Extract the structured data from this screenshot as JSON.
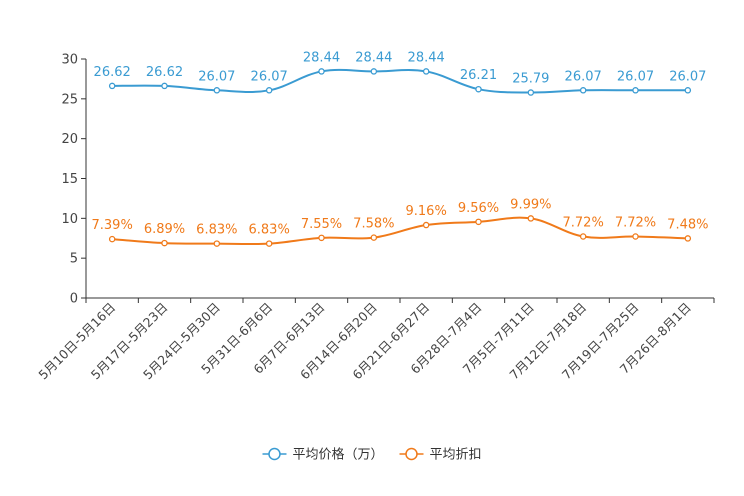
{
  "chart_data": {
    "type": "line",
    "title": "",
    "xlabel": "",
    "ylabel": "",
    "ylim": [
      0,
      30
    ],
    "yticks": [
      0,
      5,
      10,
      15,
      20,
      25,
      30
    ],
    "categories": [
      "5月10日-5月16日",
      "5月17日-5月23日",
      "5月24日-5月30日",
      "5月31日-6月6日",
      "6月7日-6月13日",
      "6月14日-6月20日",
      "6月21日-6月27日",
      "6月28日-7月4日",
      "7月5日-7月11日",
      "7月12日-7月18日",
      "7月19日-7月25日",
      "7月26日-8月1日"
    ],
    "series": [
      {
        "name": "平均价格（万）",
        "color": "#3a9bd2",
        "values": [
          26.62,
          26.62,
          26.07,
          26.07,
          28.44,
          28.44,
          28.44,
          26.21,
          25.79,
          26.07,
          26.07,
          26.07
        ],
        "labels": [
          "26.62",
          "26.62",
          "26.07",
          "26.07",
          "28.44",
          "28.44",
          "28.44",
          "26.21",
          "25.79",
          "26.07",
          "26.07",
          "26.07"
        ]
      },
      {
        "name": "平均折扣",
        "color": "#f07a1a",
        "values": [
          7.39,
          6.89,
          6.83,
          6.83,
          7.55,
          7.58,
          9.16,
          9.56,
          9.99,
          7.72,
          7.72,
          7.48
        ],
        "labels": [
          "7.39%",
          "6.89%",
          "6.83%",
          "6.83%",
          "7.55%",
          "7.58%",
          "9.16%",
          "9.56%",
          "9.99%",
          "7.72%",
          "7.72%",
          "7.48%"
        ]
      }
    ],
    "legend_position": "bottom-center",
    "grid": false
  }
}
